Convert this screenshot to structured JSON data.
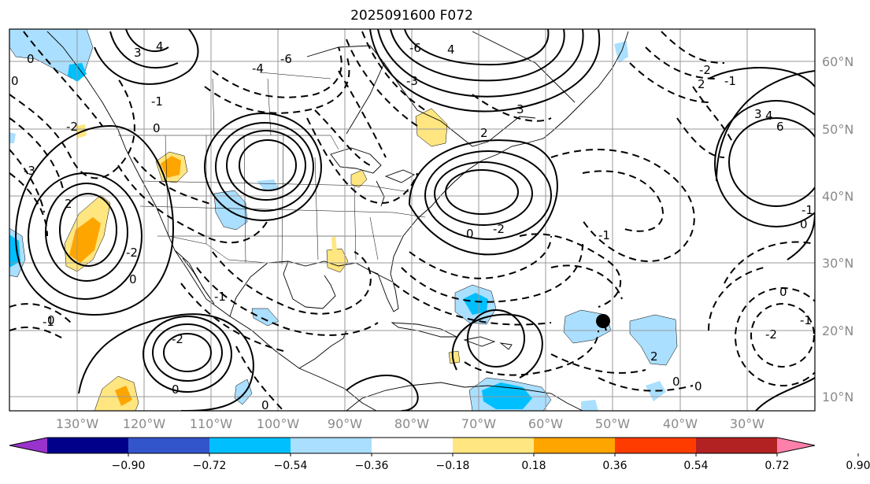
{
  "title": "2025091600 F072",
  "latitude_labels": [
    "60°N",
    "50°N",
    "40°N",
    "30°N",
    "20°N",
    "10°N"
  ],
  "longitude_labels": [
    "130°W",
    "120°W",
    "110°W",
    "100°W",
    "90°W",
    "80°W",
    "70°W",
    "60°W",
    "50°W",
    "40°W",
    "30°W"
  ],
  "colorbar": {
    "colors": [
      "#9933cc",
      "#00008b",
      "#3355cc",
      "#00bfff",
      "#aadfff",
      "#ffffff",
      "#ffe680",
      "#ffa500",
      "#ff3c00",
      "#b22222",
      "#ff80aa"
    ],
    "tick_labels": [
      "−0.90",
      "−0.72",
      "−0.54",
      "−0.36",
      "−0.18",
      "0.18",
      "0.36",
      "0.54",
      "0.72",
      "0.90"
    ]
  },
  "contour_labels": [
    "0",
    "0",
    "-2",
    "3",
    "4",
    "-4",
    "-6",
    "-1",
    "0",
    "-3",
    "2",
    "-6",
    "4",
    "-3",
    "3",
    "2",
    "0",
    "-2",
    "0",
    "-2",
    "-1",
    "0",
    "-1",
    "2",
    "3",
    "4",
    "6",
    "-1",
    "-2",
    "0",
    "-1",
    "-1",
    "0",
    "-2",
    "2",
    "0",
    "-2",
    "0",
    "-1",
    "0",
    "0"
  ],
  "storm_marker": "black-dot"
}
